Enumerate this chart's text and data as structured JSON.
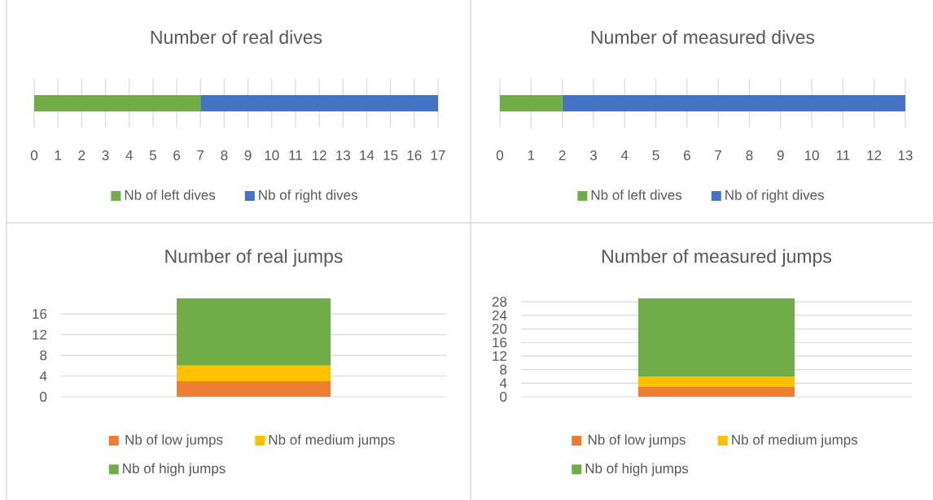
{
  "chart_data": [
    {
      "type": "bar",
      "orientation": "horizontal",
      "stacked": true,
      "title": "Number of real dives",
      "categories": [
        null
      ],
      "series": [
        {
          "name": "Nb of left dives",
          "color": "#70ad47",
          "values": [
            7
          ]
        },
        {
          "name": "Nb of right dives",
          "color": "#4472c4",
          "values": [
            10
          ]
        }
      ],
      "xlim": [
        0,
        17
      ],
      "xticks": [
        0,
        1,
        2,
        3,
        4,
        5,
        6,
        7,
        8,
        9,
        10,
        11,
        12,
        13,
        14,
        15,
        16,
        17
      ],
      "grid": "x",
      "legend": "bottom",
      "tick_labels": "x"
    },
    {
      "type": "bar",
      "orientation": "horizontal",
      "stacked": true,
      "title": "Number of measured dives",
      "categories": [
        null
      ],
      "series": [
        {
          "name": "Nb of left dives",
          "color": "#70ad47",
          "values": [
            2
          ]
        },
        {
          "name": "Nb of right dives",
          "color": "#4472c4",
          "values": [
            11
          ]
        }
      ],
      "xlim": [
        0,
        13
      ],
      "xticks": [
        0,
        1,
        2,
        3,
        4,
        5,
        6,
        7,
        8,
        9,
        10,
        11,
        12,
        13
      ],
      "grid": "x",
      "legend": "bottom",
      "tick_labels": "x"
    },
    {
      "type": "bar",
      "stacked": true,
      "title": "Number of real jumps",
      "categories": [
        null
      ],
      "series": [
        {
          "name": "Nb of low jumps",
          "color": "#ed7d31",
          "values": [
            3
          ]
        },
        {
          "name": "Nb of medium jumps",
          "color": "#ffc000",
          "values": [
            3
          ]
        },
        {
          "name": "Nb of high jumps",
          "color": "#70ad47",
          "values": [
            13
          ]
        }
      ],
      "ylim": [
        0,
        19
      ],
      "yticks": [
        0,
        4,
        8,
        12,
        16
      ],
      "grid": "y",
      "legend": "bottom",
      "tick_labels": "y"
    },
    {
      "type": "bar",
      "stacked": true,
      "title": "Number of measured jumps",
      "categories": [
        null
      ],
      "series": [
        {
          "name": "Nb of low jumps",
          "color": "#ed7d31",
          "values": [
            3
          ]
        },
        {
          "name": "Nb of medium jumps",
          "color": "#ffc000",
          "values": [
            3
          ]
        },
        {
          "name": "Nb of high jumps",
          "color": "#70ad47",
          "values": [
            23
          ]
        }
      ],
      "ylim": [
        0,
        29
      ],
      "yticks": [
        0,
        4,
        8,
        12,
        16,
        20,
        24,
        28
      ],
      "grid": "y",
      "legend": "bottom",
      "tick_labels": "y"
    }
  ]
}
